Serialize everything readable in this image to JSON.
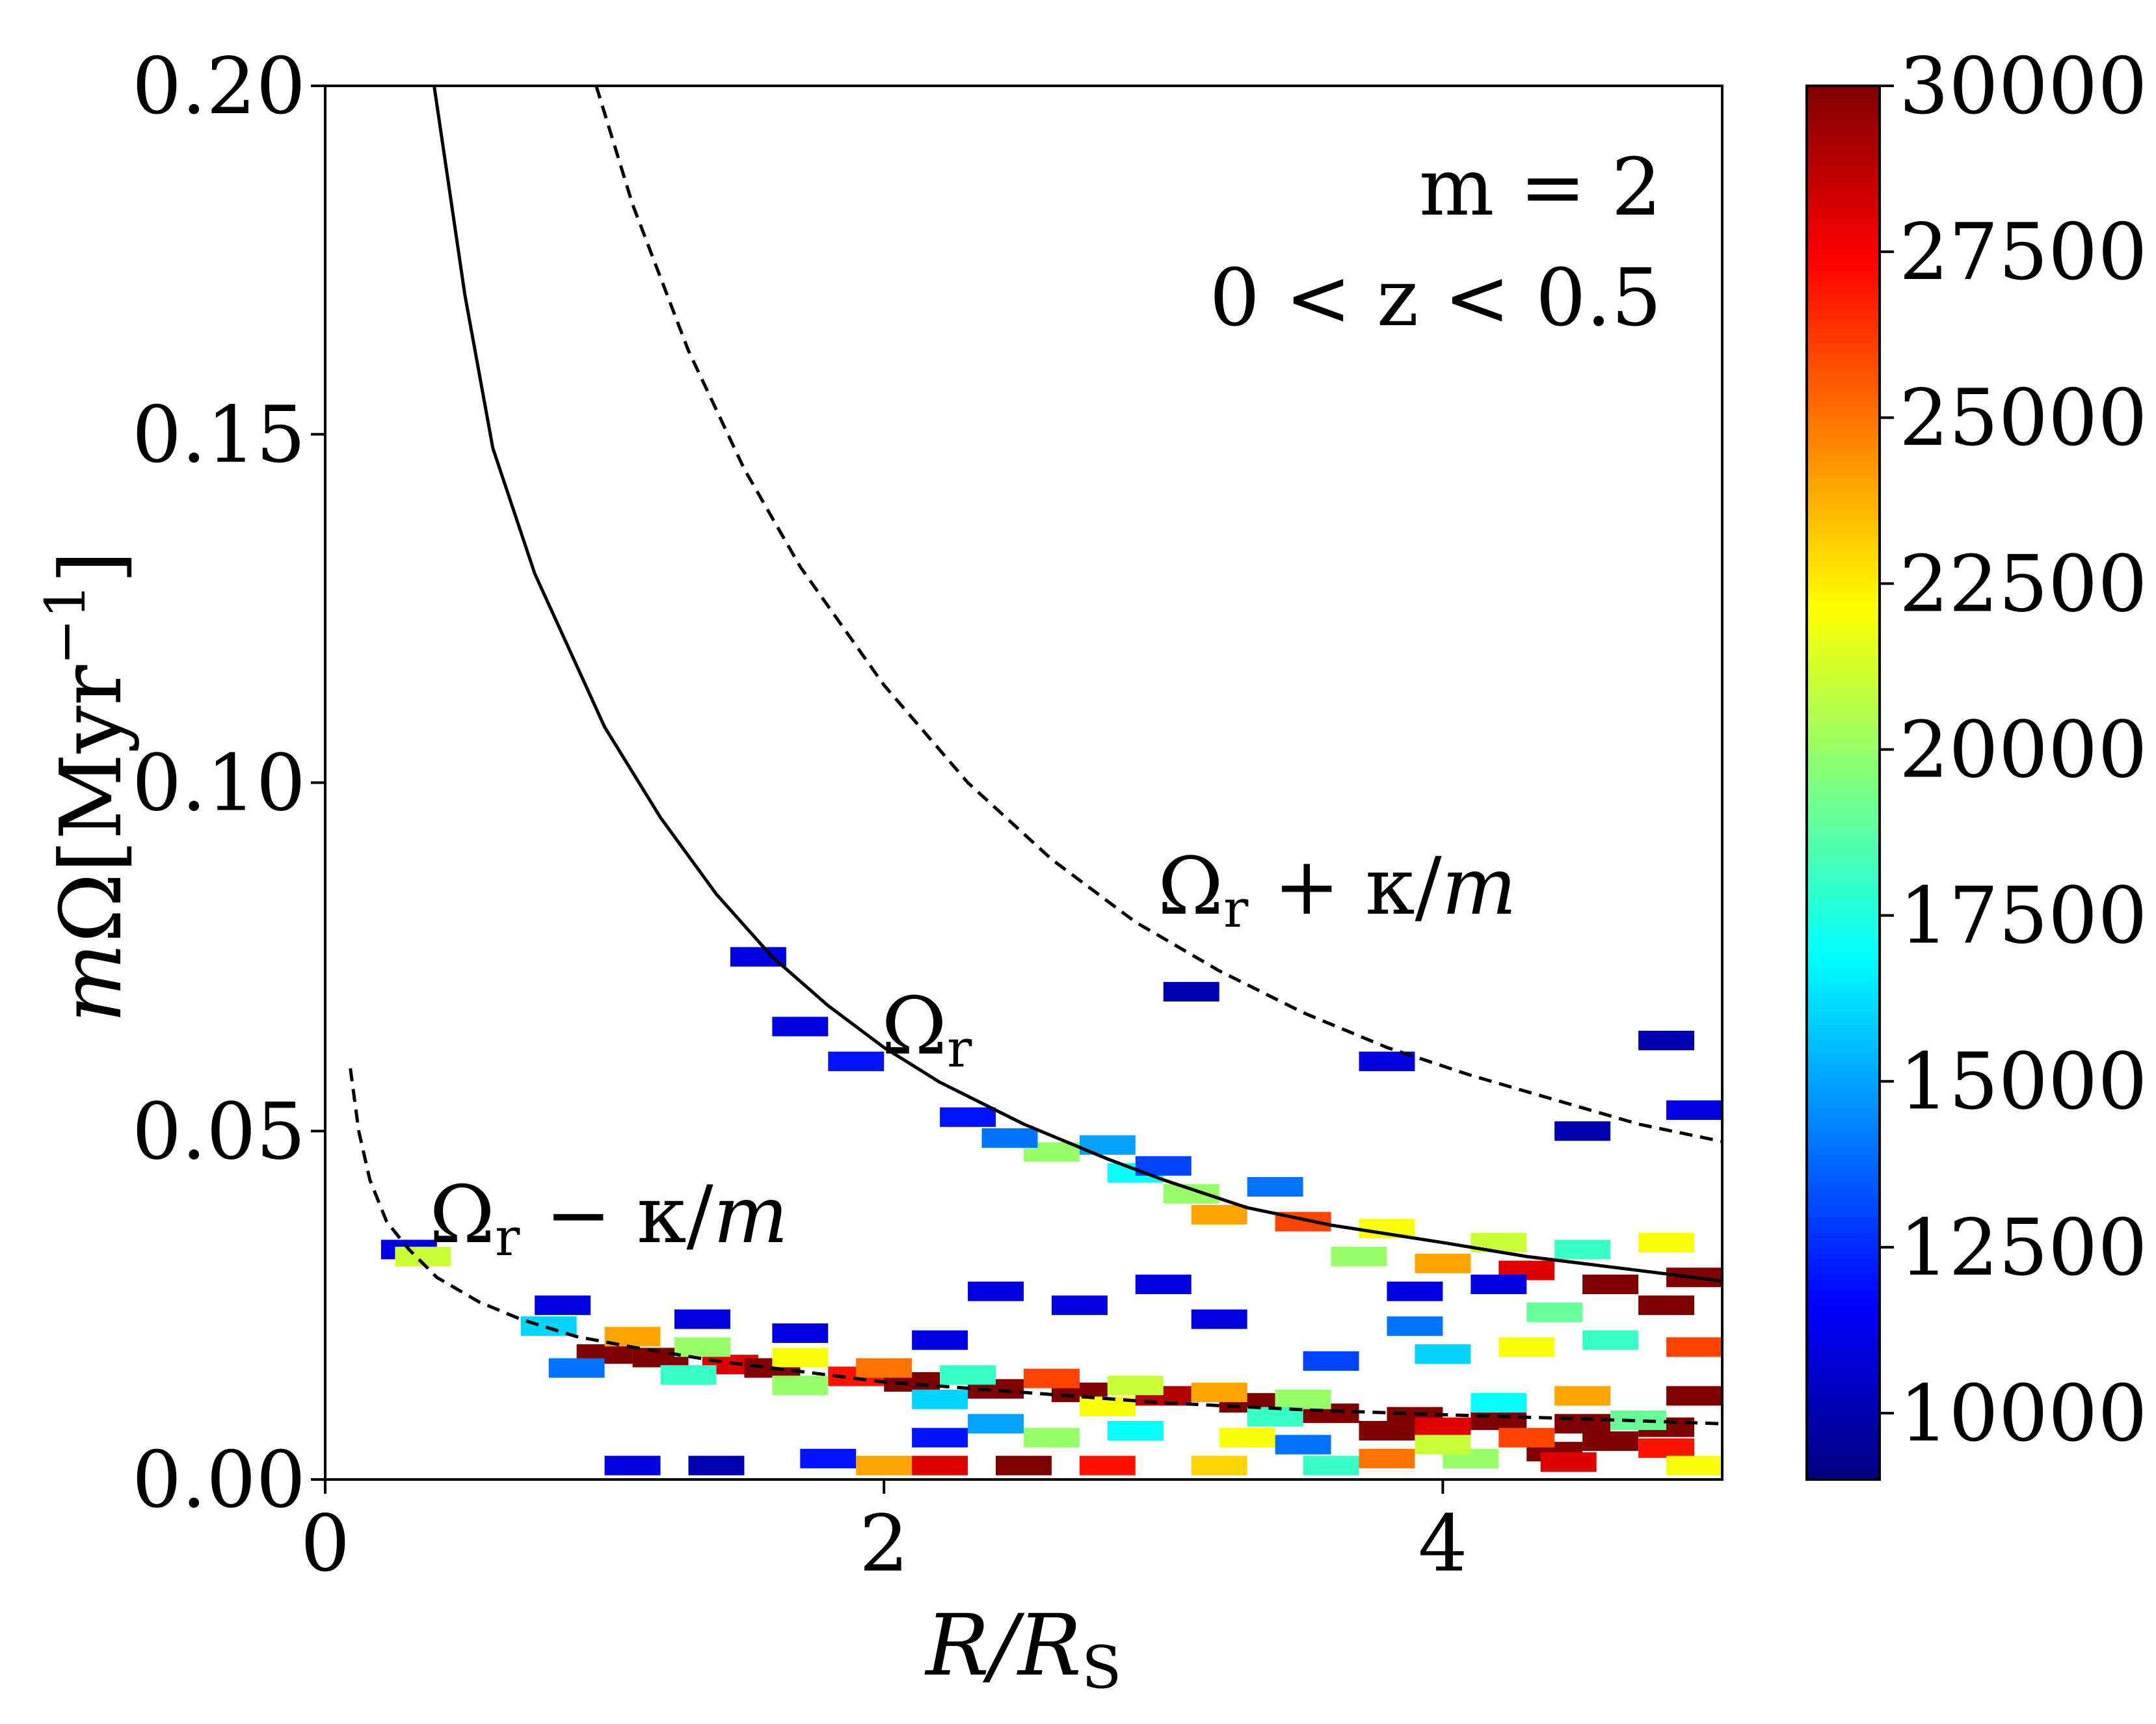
{
  "chart_data": {
    "type": "heatmap",
    "title": "",
    "xlabel": "R/R_S",
    "ylabel": "mΩ[Myr⁻¹]",
    "xlim": [
      0,
      5
    ],
    "ylim": [
      0,
      0.2
    ],
    "x_ticks": [
      {
        "value": 0,
        "label": "0"
      },
      {
        "value": 2,
        "label": "2"
      },
      {
        "value": 4,
        "label": "4"
      }
    ],
    "y_ticks": [
      {
        "value": 0.0,
        "label": "0.00"
      },
      {
        "value": 0.05,
        "label": "0.05"
      },
      {
        "value": 0.1,
        "label": "0.10"
      },
      {
        "value": 0.15,
        "label": "0.15"
      },
      {
        "value": 0.2,
        "label": "0.20"
      }
    ],
    "annotations": {
      "mode": "m = 2",
      "zrange": "0 < z < 0.5"
    },
    "curves": [
      {
        "name": "Ω_r",
        "style": "solid",
        "label": "Ω_r",
        "points": [
          [
            0.39,
            0.2
          ],
          [
            0.5,
            0.17
          ],
          [
            0.6,
            0.148
          ],
          [
            0.75,
            0.13
          ],
          [
            1.0,
            0.108
          ],
          [
            1.2,
            0.095
          ],
          [
            1.4,
            0.084
          ],
          [
            1.6,
            0.075
          ],
          [
            1.8,
            0.068
          ],
          [
            2.0,
            0.062
          ],
          [
            2.2,
            0.057
          ],
          [
            2.5,
            0.051
          ],
          [
            2.8,
            0.046
          ],
          [
            3.0,
            0.043
          ],
          [
            3.3,
            0.039
          ],
          [
            3.6,
            0.0365
          ],
          [
            4.0,
            0.034
          ],
          [
            4.3,
            0.032
          ],
          [
            4.6,
            0.0305
          ],
          [
            5.0,
            0.0285
          ]
        ]
      },
      {
        "name": "Ω_r + κ/m",
        "style": "dashed",
        "label": "Ω_r + κ/m",
        "points": [
          [
            0.97,
            0.2
          ],
          [
            1.1,
            0.183
          ],
          [
            1.3,
            0.162
          ],
          [
            1.5,
            0.145
          ],
          [
            1.7,
            0.131
          ],
          [
            2.0,
            0.114
          ],
          [
            2.3,
            0.1
          ],
          [
            2.6,
            0.089
          ],
          [
            2.9,
            0.08
          ],
          [
            3.2,
            0.073
          ],
          [
            3.5,
            0.067
          ],
          [
            3.8,
            0.062
          ],
          [
            4.1,
            0.058
          ],
          [
            4.4,
            0.0545
          ],
          [
            4.7,
            0.051
          ],
          [
            5.0,
            0.0485
          ]
        ]
      },
      {
        "name": "Ω_r − κ/m",
        "style": "dashed",
        "label": "Ω_r − κ/m",
        "points": [
          [
            0.09,
            0.059
          ],
          [
            0.12,
            0.05
          ],
          [
            0.16,
            0.043
          ],
          [
            0.22,
            0.037
          ],
          [
            0.3,
            0.033
          ],
          [
            0.4,
            0.029
          ],
          [
            0.55,
            0.0255
          ],
          [
            0.7,
            0.023
          ],
          [
            0.9,
            0.0205
          ],
          [
            1.1,
            0.019
          ],
          [
            1.4,
            0.017
          ],
          [
            1.7,
            0.0155
          ],
          [
            2.0,
            0.014
          ],
          [
            2.5,
            0.0125
          ],
          [
            3.0,
            0.011
          ],
          [
            3.5,
            0.01
          ],
          [
            4.0,
            0.0093
          ],
          [
            4.5,
            0.0087
          ],
          [
            5.0,
            0.008
          ]
        ]
      }
    ],
    "colorbar": {
      "min": 9000,
      "max": 30000,
      "ticks": [
        {
          "value": 30000,
          "label": "30000"
        },
        {
          "value": 27500,
          "label": "27500"
        },
        {
          "value": 25000,
          "label": "25000"
        },
        {
          "value": 22500,
          "label": "22500"
        },
        {
          "value": 20000,
          "label": "20000"
        },
        {
          "value": 17500,
          "label": "17500"
        },
        {
          "value": 15000,
          "label": "15000"
        },
        {
          "value": 12500,
          "label": "12500"
        },
        {
          "value": 10000,
          "label": "10000"
        }
      ],
      "colormap": [
        "#00007f",
        "#0000ff",
        "#007fff",
        "#00ffff",
        "#7fff7f",
        "#ffff00",
        "#ff7f00",
        "#ff0000",
        "#7f0000"
      ]
    },
    "cells": [
      [
        1.0,
        0.018,
        2,
        30000
      ],
      [
        1.2,
        0.0175,
        2,
        30000
      ],
      [
        1.45,
        0.0165,
        2,
        28000
      ],
      [
        1.6,
        0.016,
        2,
        30000
      ],
      [
        1.9,
        0.0148,
        2,
        27000
      ],
      [
        2.1,
        0.014,
        2,
        30000
      ],
      [
        2.4,
        0.013,
        2,
        30000
      ],
      [
        2.7,
        0.0125,
        2,
        30000
      ],
      [
        3.0,
        0.012,
        2,
        29000
      ],
      [
        3.3,
        0.011,
        2,
        30000
      ],
      [
        3.6,
        0.0095,
        2,
        30000
      ],
      [
        3.9,
        0.009,
        2,
        30000
      ],
      [
        4.2,
        0.0085,
        2,
        30000
      ],
      [
        4.5,
        0.008,
        2,
        30000
      ],
      [
        4.8,
        0.0075,
        2,
        30000
      ],
      [
        0.8,
        0.022,
        2,
        16000
      ],
      [
        1.1,
        0.0205,
        2,
        24000
      ],
      [
        1.35,
        0.019,
        2,
        20000
      ],
      [
        1.7,
        0.0175,
        2,
        22000
      ],
      [
        2.0,
        0.016,
        2,
        25000
      ],
      [
        2.3,
        0.015,
        2,
        18000
      ],
      [
        2.6,
        0.0145,
        2,
        26000
      ],
      [
        2.9,
        0.0135,
        2,
        21000
      ],
      [
        3.2,
        0.0125,
        2,
        24000
      ],
      [
        3.5,
        0.0115,
        2,
        20000
      ],
      [
        0.9,
        0.016,
        2,
        14000
      ],
      [
        1.3,
        0.015,
        2,
        18000
      ],
      [
        1.7,
        0.0135,
        2,
        20000
      ],
      [
        2.2,
        0.0115,
        2,
        16000
      ],
      [
        2.8,
        0.0105,
        2,
        22000
      ],
      [
        3.4,
        0.009,
        2,
        18000
      ],
      [
        4.4,
        0.004,
        2,
        30000
      ],
      [
        4.6,
        0.0055,
        2,
        30000
      ],
      [
        4.45,
        0.0025,
        2,
        28000
      ],
      [
        4.8,
        0.0045,
        2,
        27000
      ],
      [
        4.3,
        0.006,
        2,
        26000
      ],
      [
        3.8,
        0.007,
        2,
        30000
      ],
      [
        4.0,
        0.0075,
        2,
        28000
      ],
      [
        1.1,
        0.002,
        2,
        11000
      ],
      [
        1.4,
        0.002,
        2,
        10000
      ],
      [
        1.8,
        0.003,
        2,
        12000
      ],
      [
        2.0,
        0.002,
        2,
        24000
      ],
      [
        2.2,
        0.002,
        2,
        28000
      ],
      [
        2.5,
        0.002,
        2,
        30000
      ],
      [
        2.8,
        0.002,
        2,
        27000
      ],
      [
        3.2,
        0.002,
        2,
        23000
      ],
      [
        3.6,
        0.002,
        2,
        18000
      ],
      [
        3.8,
        0.003,
        2,
        25000
      ],
      [
        4.1,
        0.003,
        2,
        20000
      ],
      [
        4.9,
        0.002,
        2,
        22000
      ],
      [
        2.2,
        0.006,
        2,
        12000
      ],
      [
        2.4,
        0.008,
        2,
        15000
      ],
      [
        2.6,
        0.006,
        2,
        20000
      ],
      [
        2.9,
        0.007,
        2,
        17000
      ],
      [
        3.3,
        0.006,
        2,
        22000
      ],
      [
        3.5,
        0.005,
        2,
        14000
      ],
      [
        4.0,
        0.005,
        2,
        21000
      ],
      [
        4.7,
        0.0085,
        2,
        19000
      ],
      [
        4.2,
        0.011,
        2,
        17000
      ],
      [
        4.5,
        0.012,
        2,
        24000
      ],
      [
        4.9,
        0.012,
        2,
        30000
      ],
      [
        4.0,
        0.018,
        2,
        16000
      ],
      [
        4.3,
        0.019,
        2,
        22000
      ],
      [
        4.6,
        0.02,
        2,
        18000
      ],
      [
        4.9,
        0.019,
        2,
        26000
      ],
      [
        3.6,
        0.017,
        2,
        13000
      ],
      [
        3.9,
        0.022,
        2,
        14000
      ],
      [
        4.4,
        0.024,
        2,
        19000
      ],
      [
        4.8,
        0.025,
        2,
        30000
      ],
      [
        4.6,
        0.028,
        2,
        30000
      ],
      [
        4.3,
        0.03,
        2,
        28000
      ],
      [
        4.0,
        0.031,
        2,
        24000
      ],
      [
        3.7,
        0.032,
        2,
        20000
      ],
      [
        4.9,
        0.029,
        2,
        30000
      ],
      [
        3.2,
        0.038,
        2,
        24000
      ],
      [
        3.5,
        0.037,
        2,
        26000
      ],
      [
        3.8,
        0.036,
        2,
        22000
      ],
      [
        3.1,
        0.041,
        2,
        20000
      ],
      [
        2.9,
        0.044,
        2,
        17000
      ],
      [
        2.6,
        0.047,
        2,
        20000
      ],
      [
        2.45,
        0.049,
        2,
        14000
      ],
      [
        2.3,
        0.052,
        2,
        12000
      ],
      [
        4.2,
        0.034,
        2,
        21000
      ],
      [
        4.5,
        0.033,
        2,
        18000
      ],
      [
        4.8,
        0.034,
        2,
        22000
      ],
      [
        3.4,
        0.042,
        2,
        14000
      ],
      [
        3.0,
        0.045,
        2,
        13000
      ],
      [
        2.8,
        0.048,
        2,
        15000
      ],
      [
        1.9,
        0.06,
        2,
        12000
      ],
      [
        1.7,
        0.065,
        2,
        11000
      ],
      [
        1.55,
        0.075,
        2,
        11000
      ],
      [
        3.1,
        0.07,
        2,
        10000
      ],
      [
        3.8,
        0.06,
        2,
        11000
      ],
      [
        4.5,
        0.05,
        2,
        10000
      ],
      [
        4.9,
        0.053,
        2,
        11000
      ],
      [
        4.8,
        0.063,
        2,
        10000
      ],
      [
        0.3,
        0.033,
        2,
        11000
      ],
      [
        0.35,
        0.032,
        2,
        21000
      ],
      [
        0.85,
        0.025,
        2,
        11000
      ],
      [
        1.35,
        0.023,
        2,
        11000
      ],
      [
        2.4,
        0.027,
        2,
        11000
      ],
      [
        2.7,
        0.025,
        2,
        11000
      ],
      [
        3.0,
        0.028,
        2,
        11000
      ],
      [
        3.9,
        0.027,
        2,
        11000
      ],
      [
        4.2,
        0.028,
        2,
        11000
      ],
      [
        3.2,
        0.023,
        2,
        11000
      ],
      [
        2.2,
        0.02,
        2,
        11000
      ],
      [
        1.7,
        0.021,
        2,
        11000
      ]
    ]
  }
}
